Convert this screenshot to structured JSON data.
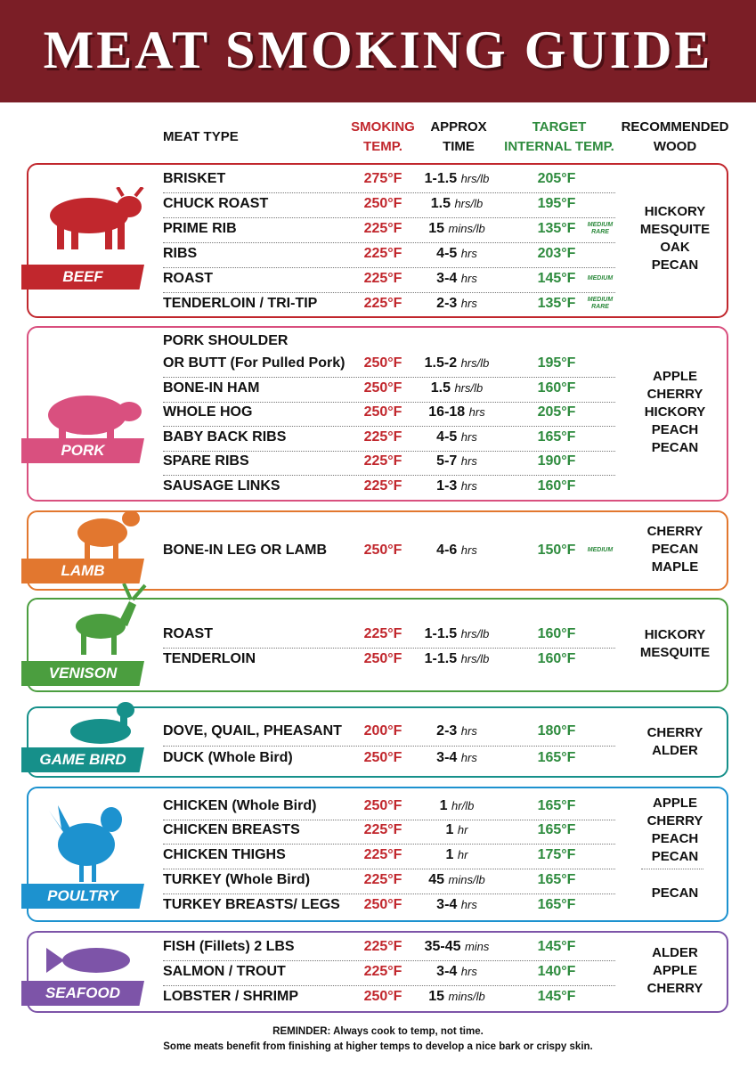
{
  "header": {
    "title": "MEAT SMOKING GUIDE"
  },
  "columns": {
    "meat_type": [
      "MEAT TYPE"
    ],
    "smoking_temp": [
      "SMOKING",
      "TEMP."
    ],
    "approx_time": [
      "APPROX",
      "TIME"
    ],
    "target_temp": [
      "TARGET",
      "INTERNAL TEMP."
    ],
    "wood": [
      "RECOMMENDED",
      "WOOD"
    ]
  },
  "sections": [
    {
      "label": "BEEF",
      "color": "#c1272d",
      "rows": [
        {
          "name": "BRISKET",
          "temp": "275°F",
          "time": "1-1.5",
          "unit": "hrs/lb",
          "target": "205°F"
        },
        {
          "name": "CHUCK ROAST",
          "temp": "250°F",
          "time": "1.5",
          "unit": "hrs/lb",
          "target": "195°F"
        },
        {
          "name": "PRIME RIB",
          "temp": "225°F",
          "time": "15",
          "unit": "mins/lb",
          "target": "135°F",
          "note": "MEDIUM RARE"
        },
        {
          "name": "RIBS",
          "temp": "225°F",
          "time": "4-5",
          "unit": "hrs",
          "target": "203°F"
        },
        {
          "name": "ROAST",
          "temp": "225°F",
          "time": "3-4",
          "unit": "hrs",
          "target": "145°F",
          "note": "MEDIUM"
        },
        {
          "name": "TENDERLOIN / TRI-TIP",
          "temp": "225°F",
          "time": "2-3",
          "unit": "hrs",
          "target": "135°F",
          "note": "MEDIUM RARE"
        }
      ],
      "wood": [
        [
          "HICKORY",
          "MESQUITE",
          "OAK",
          "PECAN"
        ]
      ]
    },
    {
      "label": "PORK",
      "color": "#d9507f",
      "rows": [
        {
          "name": [
            "PORK SHOULDER",
            "OR BUTT (For Pulled Pork)"
          ],
          "temp": "250°F",
          "time": "1.5-2",
          "unit": "hrs/lb",
          "target": "195°F"
        },
        {
          "name": "BONE-IN HAM",
          "temp": "250°F",
          "time": "1.5",
          "unit": "hrs/lb",
          "target": "160°F"
        },
        {
          "name": "WHOLE HOG",
          "temp": "250°F",
          "time": "16-18",
          "unit": "hrs",
          "target": "205°F"
        },
        {
          "name": "BABY BACK RIBS",
          "temp": "225°F",
          "time": "4-5",
          "unit": "hrs",
          "target": "165°F"
        },
        {
          "name": "SPARE RIBS",
          "temp": "225°F",
          "time": "5-7",
          "unit": "hrs",
          "target": "190°F"
        },
        {
          "name": "SAUSAGE LINKS",
          "temp": "225°F",
          "time": "1-3",
          "unit": "hrs",
          "target": "160°F"
        }
      ],
      "wood": [
        [
          "APPLE",
          "CHERRY",
          "HICKORY",
          "PEACH",
          "PECAN"
        ]
      ]
    },
    {
      "label": "LAMB",
      "color": "#e2772f",
      "rows": [
        {
          "name": "BONE-IN LEG OR LAMB",
          "temp": "250°F",
          "time": "4-6",
          "unit": "hrs",
          "target": "150°F",
          "note": "MEDIUM"
        }
      ],
      "wood": [
        [
          "CHERRY",
          "PECAN",
          "MAPLE"
        ]
      ]
    },
    {
      "label": "VENISON",
      "color": "#4b9e3f",
      "rows": [
        {
          "name": "ROAST",
          "temp": "225°F",
          "time": "1-1.5",
          "unit": "hrs/lb",
          "target": "160°F"
        },
        {
          "name": "TENDERLOIN",
          "temp": "250°F",
          "time": "1-1.5",
          "unit": "hrs/lb",
          "target": "160°F"
        }
      ],
      "wood": [
        [
          "HICKORY",
          "MESQUITE"
        ]
      ]
    },
    {
      "label": "GAME BIRD",
      "color": "#16908a",
      "rows": [
        {
          "name": "DOVE, QUAIL, PHEASANT",
          "temp": "200°F",
          "time": "2-3",
          "unit": "hrs",
          "target": "180°F"
        },
        {
          "name": "DUCK (Whole Bird)",
          "temp": "250°F",
          "time": "3-4",
          "unit": "hrs",
          "target": "165°F"
        }
      ],
      "wood": [
        [
          "CHERRY",
          "ALDER"
        ]
      ]
    },
    {
      "label": "POULTRY",
      "color": "#1d92cf",
      "rows": [
        {
          "name": "CHICKEN (Whole Bird)",
          "temp": "250°F",
          "time": "1",
          "unit": "hr/lb",
          "target": "165°F"
        },
        {
          "name": "CHICKEN BREASTS",
          "temp": "225°F",
          "time": "1",
          "unit": "hr",
          "target": "165°F"
        },
        {
          "name": "CHICKEN THIGHS",
          "temp": "225°F",
          "time": "1",
          "unit": "hr",
          "target": "175°F"
        },
        {
          "name": "TURKEY (Whole Bird)",
          "temp": "225°F",
          "time": "45",
          "unit": "mins/lb",
          "target": "165°F"
        },
        {
          "name": "TURKEY BREASTS/ LEGS",
          "temp": "250°F",
          "time": "3-4",
          "unit": "hrs",
          "target": "165°F"
        }
      ],
      "wood": [
        [
          "APPLE",
          "CHERRY",
          "PEACH",
          "PECAN"
        ],
        [
          "PECAN"
        ]
      ]
    },
    {
      "label": "SEAFOOD",
      "color": "#7d54a8",
      "rows": [
        {
          "name": "FISH (Fillets) 2 LBS",
          "temp": "225°F",
          "time": "35-45",
          "unit": "mins",
          "target": "145°F"
        },
        {
          "name": "SALMON / TROUT",
          "temp": "225°F",
          "time": "3-4",
          "unit": "hrs",
          "target": "140°F"
        },
        {
          "name": "LOBSTER / SHRIMP",
          "temp": "250°F",
          "time": "15",
          "unit": "mins/lb",
          "target": "145°F"
        }
      ],
      "wood": [
        [
          "ALDER",
          "APPLE",
          "CHERRY"
        ]
      ]
    }
  ],
  "reminder": [
    "REMINDER: Always cook to temp, not time.",
    "Some meats benefit from finishing at higher temps to develop a nice bark or crispy skin."
  ]
}
